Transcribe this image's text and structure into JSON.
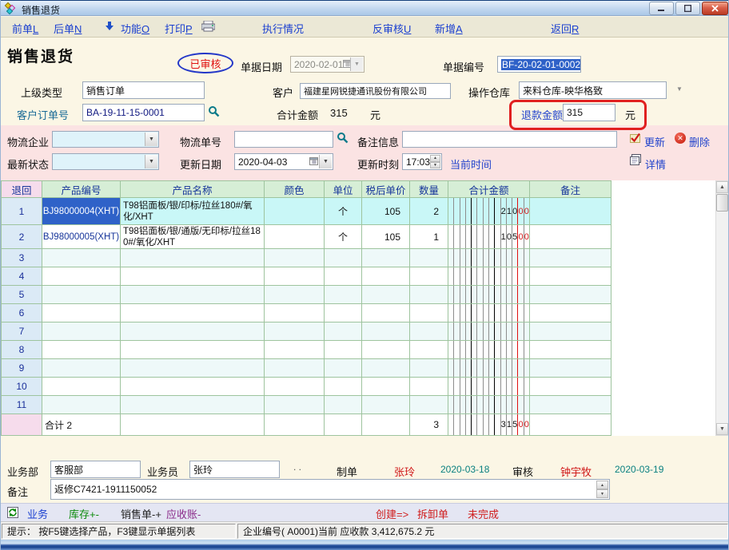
{
  "window": {
    "title": "销售退货"
  },
  "toolbar": {
    "items": [
      {
        "text": "前单",
        "key": "L"
      },
      {
        "text": "后单",
        "key": "N"
      },
      {
        "text": "功能",
        "key": "O"
      },
      {
        "text": "打印",
        "key": "P"
      },
      {
        "text": "执行情况",
        "key": ""
      },
      {
        "text": "反审核",
        "key": "U"
      },
      {
        "text": "新增",
        "key": "A"
      },
      {
        "text": "返回",
        "key": "R"
      }
    ]
  },
  "form": {
    "page_title": "销售退货",
    "stamp": "已审核",
    "doc_date_label": "单据日期",
    "doc_date": "2020-02-01",
    "doc_no_label": "单据编号",
    "doc_no": "BF-20-02-01-0002",
    "parent_type_label": "上级类型",
    "parent_type": "销售订单",
    "customer_label": "客户",
    "customer": "福建星网锐捷通讯股份有限公司",
    "warehouse_label": "操作仓库",
    "warehouse": "来料仓库-映华格致",
    "cust_order_label": "客户订单号",
    "cust_order_no": "BA-19-11-15-0001",
    "total_label": "合计金额",
    "total_amount": "315",
    "currency": "元",
    "refund_label": "退款金额",
    "refund_amount": "315",
    "refund_currency": "元"
  },
  "logistics": {
    "company_label": "物流企业",
    "company": "",
    "tracking_label": "物流单号",
    "tracking_no": "",
    "remark_label": "备注信息",
    "remark": "",
    "latest_status_label": "最新状态",
    "latest_status": "",
    "update_date_label": "更新日期",
    "update_date": "2020-04-03",
    "update_time_label": "更新时刻",
    "update_time": "17:03",
    "current_time_link": "当前时间",
    "update_button": "更新",
    "delete_button": "删除",
    "detail_button": "详情"
  },
  "table": {
    "columns": [
      "退回",
      "产品编号",
      "产品名称",
      "颜色",
      "单位",
      "税后单价",
      "数量",
      "合计金额",
      "备注"
    ],
    "rows": [
      {
        "no": "1",
        "code": "BJ98000004(XHT)",
        "name": "T98铝面板/银/印标/拉丝180#/氧化/XHT",
        "color": "",
        "unit": "个",
        "price": "105",
        "qty": "2",
        "amount_int": "210",
        "amount_dec": "00",
        "selected": true
      },
      {
        "no": "2",
        "code": "BJ98000005(XHT)",
        "name": "T98铝面板/银/通版/无印标/拉丝180#/氧化/XHT",
        "color": "",
        "unit": "个",
        "price": "105",
        "qty": "1",
        "amount_int": "105",
        "amount_dec": "00",
        "selected": false
      },
      {
        "no": "3"
      },
      {
        "no": "4"
      },
      {
        "no": "5"
      },
      {
        "no": "6"
      },
      {
        "no": "7"
      },
      {
        "no": "8"
      },
      {
        "no": "9"
      },
      {
        "no": "10"
      },
      {
        "no": "11"
      }
    ],
    "summary": {
      "label": "合计 2",
      "qty": "3",
      "amount_int": "315",
      "amount_dec": "00"
    }
  },
  "footer": {
    "dept_label": "业务部",
    "dept": "客服部",
    "clerk_label": "业务员",
    "clerk": "张玲",
    "dots": ". .",
    "maker_label": "制单",
    "maker": "张玲",
    "maker_date": "2020-03-18",
    "audit_label": "审核",
    "auditor": "钟宇牧",
    "audit_date": "2020-03-19",
    "note_label": "备注",
    "note": "返修C7421-1911150052"
  },
  "bottom_toolbar": {
    "items": [
      {
        "label": "业务"
      },
      {
        "label": "库存+-"
      },
      {
        "label": "销售单-+"
      },
      {
        "label": "应收账-"
      },
      {
        "label": "创建=>"
      },
      {
        "label": "拆卸单"
      },
      {
        "label": "未完成"
      }
    ]
  },
  "status_bar": {
    "left": "提示： 按F5键选择产品，F3键显示单据列表",
    "right": "企业编号( A0001)当前 应收款 3,412,675.2 元"
  },
  "colors": {
    "link_blue": "#1a3fd0",
    "stamp_red": "#e01010",
    "selection_blue": "#2f62c8",
    "grid_border_green": "#9ec49e",
    "header_green": "#d6eed6",
    "row_alt": "#eef9f9",
    "selected_row": "#c9f7f7",
    "pink_panel": "#fbe3e3",
    "cream_panel": "#fbf6e5",
    "red_annotation": "#e02020",
    "maker_red": "#d01818",
    "date_teal": "#0a8080"
  },
  "icons": {
    "window_icon": "diamond-cluster",
    "function_icon": "down-arrow",
    "print_icon": "printer",
    "search_icon": "magnifier",
    "update_icon": "red-check",
    "delete_icon": "red-cross-circle",
    "detail_icon": "notebook",
    "calendar_icon": "calendar",
    "combo_arrow": "▼",
    "spinner_up": "▲",
    "spinner_down": "▼",
    "scroll_up": "▲",
    "scroll_down": "▼",
    "minimize": "–",
    "maximize": "▫",
    "close": "✕"
  }
}
